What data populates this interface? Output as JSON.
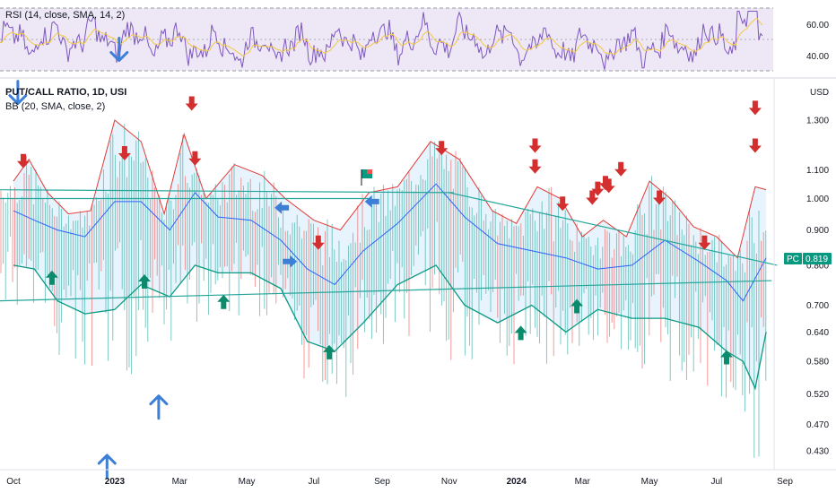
{
  "rsi_panel": {
    "title": "RSI (14, close, SMA, 14, 2)",
    "levels": [
      "60.00",
      "40.00"
    ]
  },
  "main_panel": {
    "title": "PUT/CALL RATIO, 1D, USI",
    "indicator": "BB (20, SMA, close, 2)",
    "currency": "USD",
    "symbol_tag": "PC",
    "last_value": "0.819"
  },
  "colors": {
    "bull_bar": "#26a69a",
    "bear_bar": "#ef5350",
    "upper_band": "#e53935",
    "basis": "#2962ff",
    "lower_band": "#089981",
    "band_fill": "#e3f2fd",
    "rsi_line": "#7e57c2",
    "rsi_sma": "#f5c842",
    "trendline": "#26a69a",
    "down_arrow": "#d32f2f",
    "up_arrow": "#0b8a6c",
    "blue_arrow": "#3d7fd6"
  },
  "chart_data": {
    "type": "bar",
    "title": "PUT/CALL RATIO, 1D, USI",
    "overlay": "BB (20, SMA, close, 2)",
    "y_scale": "log",
    "ylim": [
      0.41,
      1.45
    ],
    "y_ticks": [
      "1.300",
      "1.100",
      "1.000",
      "0.900",
      "0.800",
      "0.700",
      "0.640",
      "0.580",
      "0.520",
      "0.470",
      "0.430"
    ],
    "x_ticks": [
      "Oct",
      "2023",
      "Mar",
      "May",
      "Jul",
      "Sep",
      "Nov",
      "2024",
      "Mar",
      "May",
      "Jul",
      "Sep"
    ],
    "last_value": 0.819,
    "upper_band": [
      [
        "2022-10-01",
        1.06
      ],
      [
        "2022-10-15",
        1.14
      ],
      [
        "2022-11-01",
        1.02
      ],
      [
        "2022-11-20",
        0.95
      ],
      [
        "2022-12-10",
        0.96
      ],
      [
        "2023-01-01",
        1.3
      ],
      [
        "2023-01-25",
        1.21
      ],
      [
        "2023-02-15",
        0.95
      ],
      [
        "2023-03-05",
        1.24
      ],
      [
        "2023-03-25",
        1.0
      ],
      [
        "2023-04-20",
        1.12
      ],
      [
        "2023-05-15",
        1.08
      ],
      [
        "2023-06-05",
        1.0
      ],
      [
        "2023-07-01",
        0.93
      ],
      [
        "2023-07-25",
        0.9
      ],
      [
        "2023-08-20",
        1.02
      ],
      [
        "2023-09-15",
        1.04
      ],
      [
        "2023-10-15",
        1.21
      ],
      [
        "2023-11-10",
        1.14
      ],
      [
        "2023-12-10",
        0.96
      ],
      [
        "2024-01-01",
        0.92
      ],
      [
        "2024-01-20",
        1.04
      ],
      [
        "2024-02-10",
        1.0
      ],
      [
        "2024-03-01",
        0.88
      ],
      [
        "2024-03-20",
        0.93
      ],
      [
        "2024-04-10",
        0.88
      ],
      [
        "2024-05-01",
        1.06
      ],
      [
        "2024-05-20",
        1.0
      ],
      [
        "2024-06-10",
        0.91
      ],
      [
        "2024-07-01",
        0.88
      ],
      [
        "2024-07-20",
        0.82
      ],
      [
        "2024-08-05",
        1.04
      ],
      [
        "2024-08-15",
        1.03
      ]
    ],
    "basis": [
      [
        "2022-10-01",
        0.96
      ],
      [
        "2022-10-20",
        0.93
      ],
      [
        "2022-11-10",
        0.9
      ],
      [
        "2022-12-05",
        0.88
      ],
      [
        "2023-01-01",
        0.99
      ],
      [
        "2023-01-25",
        0.99
      ],
      [
        "2023-02-20",
        0.9
      ],
      [
        "2023-03-15",
        1.02
      ],
      [
        "2023-04-05",
        0.94
      ],
      [
        "2023-05-05",
        0.93
      ],
      [
        "2023-06-01",
        0.87
      ],
      [
        "2023-06-25",
        0.79
      ],
      [
        "2023-07-20",
        0.75
      ],
      [
        "2023-08-15",
        0.84
      ],
      [
        "2023-09-15",
        0.92
      ],
      [
        "2023-10-20",
        1.05
      ],
      [
        "2023-11-15",
        0.94
      ],
      [
        "2023-12-15",
        0.86
      ],
      [
        "2024-01-15",
        0.84
      ],
      [
        "2024-02-15",
        0.82
      ],
      [
        "2024-03-15",
        0.79
      ],
      [
        "2024-04-15",
        0.8
      ],
      [
        "2024-05-15",
        0.87
      ],
      [
        "2024-06-15",
        0.81
      ],
      [
        "2024-07-10",
        0.76
      ],
      [
        "2024-07-25",
        0.71
      ],
      [
        "2024-08-15",
        0.82
      ]
    ],
    "lower_band": [
      [
        "2022-10-01",
        0.8
      ],
      [
        "2022-10-20",
        0.79
      ],
      [
        "2022-11-10",
        0.71
      ],
      [
        "2022-12-05",
        0.68
      ],
      [
        "2023-01-01",
        0.69
      ],
      [
        "2023-01-25",
        0.75
      ],
      [
        "2023-02-20",
        0.72
      ],
      [
        "2023-03-15",
        0.8
      ],
      [
        "2023-04-05",
        0.78
      ],
      [
        "2023-05-05",
        0.78
      ],
      [
        "2023-06-01",
        0.74
      ],
      [
        "2023-06-25",
        0.62
      ],
      [
        "2023-07-20",
        0.6
      ],
      [
        "2023-08-15",
        0.66
      ],
      [
        "2023-09-15",
        0.75
      ],
      [
        "2023-10-20",
        0.8
      ],
      [
        "2023-11-15",
        0.7
      ],
      [
        "2023-12-15",
        0.66
      ],
      [
        "2024-01-15",
        0.7
      ],
      [
        "2024-02-15",
        0.64
      ],
      [
        "2024-03-15",
        0.69
      ],
      [
        "2024-04-15",
        0.67
      ],
      [
        "2024-05-15",
        0.67
      ],
      [
        "2024-06-15",
        0.65
      ],
      [
        "2024-07-10",
        0.6
      ],
      [
        "2024-07-25",
        0.58
      ],
      [
        "2024-08-05",
        0.53
      ],
      [
        "2024-08-15",
        0.64
      ]
    ],
    "trendlines": [
      [
        [
          "2022-09-15",
          1.03
        ],
        [
          "2023-11-05",
          1.02
        ]
      ],
      [
        [
          "2022-09-15",
          0.71
        ],
        [
          "2024-08-20",
          0.76
        ]
      ],
      [
        [
          "2023-11-01",
          1.02
        ],
        [
          "2024-08-25",
          0.8
        ]
      ],
      [
        [
          "2022-09-15",
          1.0
        ],
        [
          "2023-08-20",
          1.0
        ]
      ]
    ],
    "signals_down": [
      [
        "2022-10-10",
        1.13
      ],
      [
        "2023-01-10",
        1.16
      ],
      [
        "2023-03-12",
        1.37
      ],
      [
        "2023-03-15",
        1.14
      ],
      [
        "2023-07-05",
        0.86
      ],
      [
        "2023-10-25",
        1.18
      ],
      [
        "2024-01-18",
        1.19
      ],
      [
        "2024-01-18",
        1.11
      ],
      [
        "2024-02-12",
        0.98
      ],
      [
        "2024-03-10",
        1.0
      ],
      [
        "2024-03-15",
        1.03
      ],
      [
        "2024-03-22",
        1.05
      ],
      [
        "2024-03-25",
        1.04
      ],
      [
        "2024-04-05",
        1.1
      ],
      [
        "2024-05-10",
        1.0
      ],
      [
        "2024-06-20",
        0.86
      ],
      [
        "2024-08-05",
        1.35
      ],
      [
        "2024-08-05",
        1.19
      ]
    ],
    "signals_up": [
      [
        "2022-11-05",
        0.77
      ],
      [
        "2023-01-28",
        0.76
      ],
      [
        "2023-04-10",
        0.71
      ],
      [
        "2023-07-15",
        0.6
      ],
      [
        "2024-01-05",
        0.64
      ],
      [
        "2024-02-25",
        0.7
      ],
      [
        "2024-07-10",
        0.59
      ]
    ],
    "signals_blue": [
      [
        "2022-10-05",
        1.42,
        "down"
      ],
      [
        "2023-01-05",
        1.64,
        "down"
      ],
      [
        "2022-12-25",
        0.41,
        "up"
      ],
      [
        "2023-02-10",
        0.5,
        "up"
      ],
      [
        "2023-06-01",
        0.97,
        "left"
      ],
      [
        "2023-06-10",
        0.81,
        "right"
      ],
      [
        "2023-08-22",
        0.99,
        "left"
      ]
    ]
  }
}
